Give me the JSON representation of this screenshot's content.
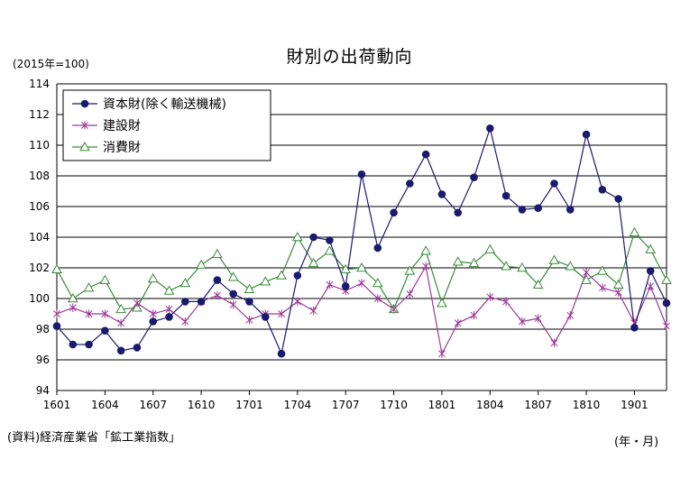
{
  "chart_data": {
    "type": "line",
    "title": "財別の出荷動向",
    "unit": "(2015年=100)",
    "source": "(資料)経済産業省「鉱工業指数」",
    "xlabel": "(年・月)",
    "ylim": [
      94,
      114
    ],
    "yticks": [
      94,
      96,
      98,
      100,
      102,
      104,
      106,
      108,
      110,
      112,
      114
    ],
    "grid": true,
    "legend_position": "top-left",
    "x": [
      "1601",
      "1602",
      "1603",
      "1604",
      "1605",
      "1606",
      "1607",
      "1608",
      "1609",
      "1610",
      "1611",
      "1612",
      "1701",
      "1702",
      "1703",
      "1704",
      "1705",
      "1706",
      "1707",
      "1708",
      "1709",
      "1710",
      "1711",
      "1712",
      "1801",
      "1802",
      "1803",
      "1804",
      "1805",
      "1806",
      "1807",
      "1808",
      "1809",
      "1810",
      "1811",
      "1812",
      "1901",
      "1902",
      "1903"
    ],
    "xticks": [
      "1601",
      "1604",
      "1607",
      "1610",
      "1701",
      "1704",
      "1707",
      "1710",
      "1801",
      "1804",
      "1807",
      "1810",
      "1901"
    ],
    "series": [
      {
        "name": "資本財(除く輸送機械)",
        "color": "#1a1a6e",
        "marker": "circle",
        "values": [
          98.2,
          97.0,
          97.0,
          97.9,
          96.6,
          96.8,
          98.5,
          98.8,
          99.8,
          99.8,
          101.2,
          100.3,
          99.8,
          98.8,
          96.4,
          101.5,
          104.0,
          103.8,
          100.8,
          108.1,
          103.3,
          105.6,
          107.5,
          109.4,
          106.8,
          105.6,
          107.9,
          111.1,
          106.7,
          105.8,
          105.9,
          107.5,
          105.8,
          110.7,
          107.1,
          106.5,
          98.1,
          101.8,
          99.7
        ]
      },
      {
        "name": "建設財",
        "color": "#9c3a98",
        "marker": "star",
        "values": [
          99.0,
          99.4,
          99.0,
          99.0,
          98.4,
          99.7,
          99.0,
          99.3,
          98.5,
          99.8,
          100.2,
          99.6,
          98.6,
          99.0,
          99.0,
          99.8,
          99.2,
          100.9,
          100.5,
          101.0,
          100.0,
          99.3,
          100.3,
          102.1,
          96.4,
          98.4,
          98.9,
          100.1,
          99.8,
          98.5,
          98.7,
          97.1,
          98.9,
          101.7,
          100.7,
          100.4,
          98.4,
          100.8,
          98.2
        ]
      },
      {
        "name": "消費財",
        "color": "#3a8a3a",
        "marker": "triangle",
        "values": [
          101.9,
          100.0,
          100.7,
          101.2,
          99.3,
          99.4,
          101.3,
          100.5,
          101.0,
          102.2,
          102.9,
          101.4,
          100.6,
          101.1,
          101.5,
          104.0,
          102.3,
          103.1,
          101.9,
          102.0,
          101.0,
          99.3,
          101.8,
          103.1,
          99.7,
          102.4,
          102.3,
          103.2,
          102.1,
          102.0,
          100.9,
          102.5,
          102.1,
          101.2,
          101.8,
          100.9,
          104.3,
          103.2,
          101.2
        ]
      }
    ]
  }
}
